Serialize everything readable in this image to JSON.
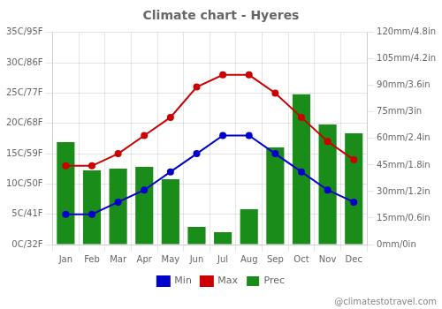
{
  "chart_data": {
    "type": "bar",
    "title": "Climate chart - Hyeres",
    "categories": [
      "Jan",
      "Feb",
      "Mar",
      "Apr",
      "May",
      "Jun",
      "Jul",
      "Aug",
      "Sep",
      "Oct",
      "Nov",
      "Dec"
    ],
    "series": [
      {
        "name": "Prec",
        "type": "bar",
        "color": "#1a8c1a",
        "axis": "y2",
        "values": [
          58,
          42,
          43,
          44,
          37,
          10,
          7,
          20,
          55,
          85,
          68,
          63
        ]
      },
      {
        "name": "Min",
        "type": "line",
        "color": "#0000cc",
        "marker": "circle",
        "values": [
          5,
          5,
          7,
          9,
          12,
          15,
          18,
          18,
          15,
          12,
          9,
          7
        ]
      },
      {
        "name": "Max",
        "type": "line",
        "color": "#cc0000",
        "marker": "circle",
        "values": [
          13,
          13,
          15,
          18,
          21,
          26,
          28,
          28,
          25,
          21,
          17,
          14
        ]
      }
    ],
    "ylim": [
      0,
      35
    ],
    "yticks": [
      {
        "value": 0,
        "label": "0C/32F"
      },
      {
        "value": 5,
        "label": "5C/41F"
      },
      {
        "value": 10,
        "label": "10C/50F"
      },
      {
        "value": 15,
        "label": "15C/59F"
      },
      {
        "value": 20,
        "label": "20C/68F"
      },
      {
        "value": 25,
        "label": "25C/77F"
      },
      {
        "value": 30,
        "label": "30C/86F"
      },
      {
        "value": 35,
        "label": "35C/95F"
      }
    ],
    "y2lim": [
      0,
      120
    ],
    "y2ticks": [
      {
        "value": 0,
        "label": "0mm/0in"
      },
      {
        "value": 15,
        "label": "15mm/0.6in"
      },
      {
        "value": 30,
        "label": "30mm/1.2in"
      },
      {
        "value": 45,
        "label": "45mm/1.8in"
      },
      {
        "value": 60,
        "label": "60mm/2.4in"
      },
      {
        "value": 75,
        "label": "75mm/3in"
      },
      {
        "value": 90,
        "label": "90mm/3.6in"
      },
      {
        "value": 105,
        "label": "105mm/4.2in"
      },
      {
        "value": 120,
        "label": "120mm/4.8in"
      }
    ],
    "grid": true,
    "legend": "bottom",
    "annotations": [
      "@climatestotravel.com"
    ]
  }
}
